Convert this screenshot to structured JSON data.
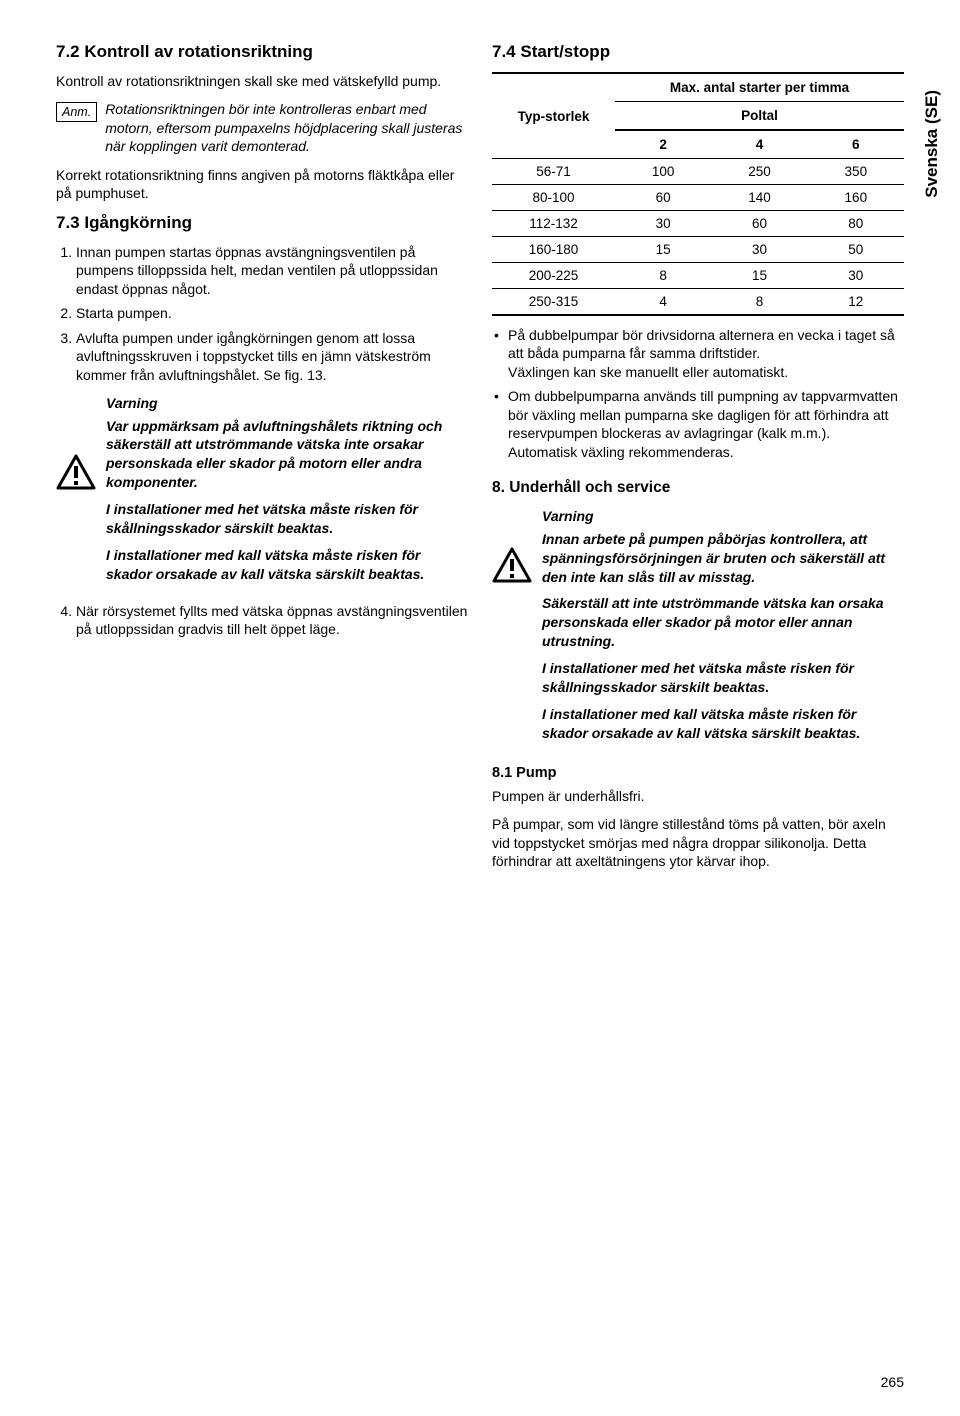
{
  "sideLabel": "Svenska (SE)",
  "pageNumber": "265",
  "left": {
    "h72": "7.2 Kontroll av rotationsriktning",
    "p72": "Kontroll av rotationsriktningen skall ske med vätskefylld pump.",
    "noteTag": "Anm.",
    "noteText": "Rotationsriktningen bör inte kontrolleras enbart med motorn, eftersom pumpaxelns höjdplacering skall justeras när kopplingen varit demonterad.",
    "p72b": "Korrekt rotationsriktning finns angiven på motorns fläktkåpa eller på pumphuset.",
    "h73": "7.3 Igångkörning",
    "ol73_1": "Innan pumpen startas öppnas avstängningsventilen på pumpens tilloppssida helt, medan ventilen på utloppssidan endast öppnas något.",
    "ol73_2": "Starta pumpen.",
    "ol73_3": "Avlufta pumpen under igångkörningen genom att lossa avluftningsskruven i toppstycket tills en jämn vätskeström kommer från avluftningshålet. Se fig. 13.",
    "warnTitle": "Varning",
    "warn1": "Var uppmärksam på avluftningshålets riktning och säkerställ att utströmmande vätska inte orsakar personskada eller skador på motorn eller andra komponenter.",
    "warn2": "I installationer med het vätska måste risken för skållningsskador särskilt beaktas.",
    "warn3": "I installationer med kall vätska måste risken för skador orsakade av kall vätska särskilt beaktas.",
    "ol73_4": "När rörsystemet fyllts med vätska öppnas avstängningsventilen på utloppssidan gradvis till helt öppet läge."
  },
  "right": {
    "h74": "7.4 Start/stopp",
    "table": {
      "caption": "Max. antal starter per timma",
      "col0": "Typ-storlek",
      "group": "Poltal",
      "subcols": [
        "2",
        "4",
        "6"
      ],
      "rows": [
        [
          "56-71",
          "100",
          "250",
          "350"
        ],
        [
          "80-100",
          "60",
          "140",
          "160"
        ],
        [
          "112-132",
          "30",
          "60",
          "80"
        ],
        [
          "160-180",
          "15",
          "30",
          "50"
        ],
        [
          "200-225",
          "8",
          "15",
          "30"
        ],
        [
          "250-315",
          "4",
          "8",
          "12"
        ]
      ]
    },
    "bullet1a": "På dubbelpumpar bör drivsidorna alternera en vecka i taget så att båda pumparna får samma driftstider.",
    "bullet1b": "Växlingen kan ske manuellt eller automatiskt.",
    "bullet2a": "Om dubbelpumparna används till pumpning av tappvarmvatten bör växling mellan pumparna ske dagligen för att förhindra att reservpumpen blockeras av avlagringar (kalk m.m.).",
    "bullet2b": "Automatisk växling rekommenderas.",
    "h8": "8. Underhåll och service",
    "warnTitle": "Varning",
    "warnR1": "Innan arbete på pumpen påbörjas kontrollera, att spänningsförsörjningen är bruten och säkerställ att den inte kan slås till av misstag.",
    "warnR2": "Säkerställ att inte utströmmande vätska kan orsaka personskada eller skador på motor eller annan utrustning.",
    "warnR3": "I installationer med het vätska måste risken för skållningsskador särskilt beaktas.",
    "warnR4": "I installationer med kall vätska måste risken för skador orsakade av kall vätska särskilt beaktas.",
    "h81": "8.1 Pump",
    "p81a": "Pumpen är underhållsfri.",
    "p81b": "På pumpar, som vid längre stillestånd töms på vatten, bör axeln vid toppstycket smörjas med några droppar silikonolja. Detta förhindrar att axeltätningens ytor kärvar ihop."
  }
}
